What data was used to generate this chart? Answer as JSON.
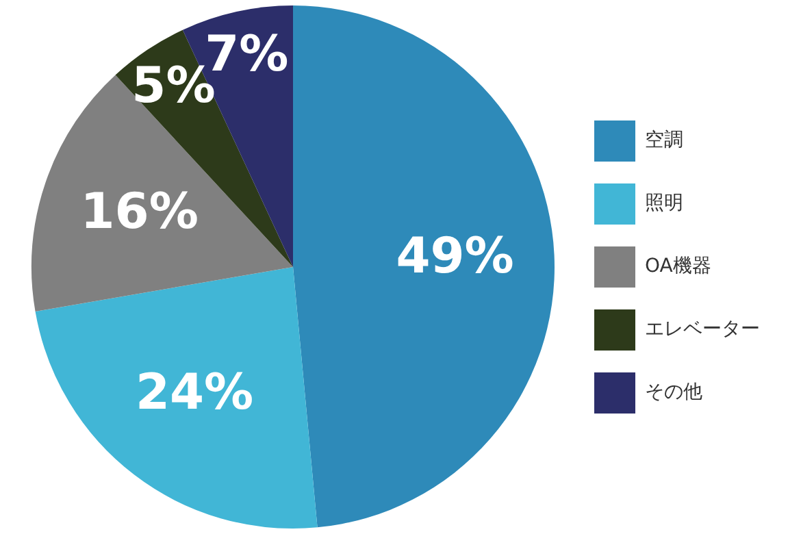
{
  "chart_data": {
    "type": "pie",
    "categories": [
      "空調",
      "照明",
      "OA機器",
      "エレベーター",
      "その他"
    ],
    "values": [
      49,
      24,
      16,
      5,
      7
    ],
    "value_labels": [
      "49%",
      "24%",
      "16%",
      "5%",
      "7%"
    ],
    "colors": [
      "#2e8ab9",
      "#41b6d6",
      "#808080",
      "#2d3a1a",
      "#2c2e6a"
    ],
    "legend": "right"
  }
}
